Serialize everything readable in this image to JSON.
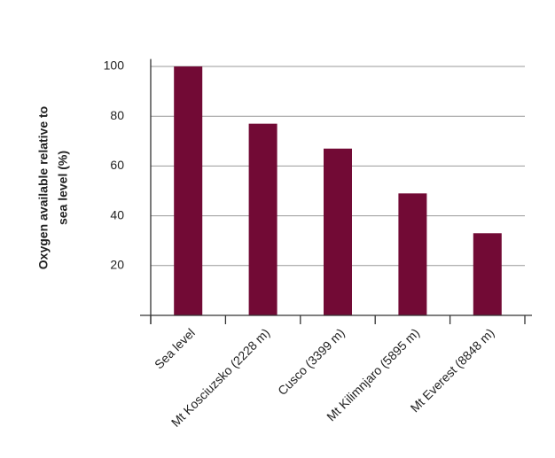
{
  "chart_data": {
    "type": "bar",
    "y_label": [
      "Oxygen available relative to",
      "sea level (%)"
    ],
    "categories": [
      "Sea level",
      "Mt Kosciuzsko (2228 m)",
      "Cusco (3399 m)",
      "Mt Kilimnjaro (5895 m)",
      "Mt Everest (8848 m)"
    ],
    "values": [
      100,
      77,
      67,
      49,
      33
    ],
    "color": "#720a35",
    "ylim": [
      0,
      103
    ],
    "yticks": [
      20,
      40,
      60,
      80,
      100
    ],
    "grid": true
  }
}
